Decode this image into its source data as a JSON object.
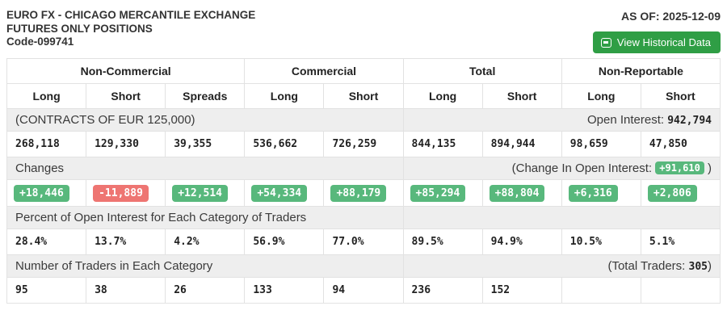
{
  "header": {
    "title_line1": "EURO FX - CHICAGO MERCANTILE EXCHANGE",
    "title_line2": "FUTURES ONLY POSITIONS",
    "code": "Code-099741",
    "as_of": "AS OF: 2025-12-09",
    "historical_button_label": "View Historical Data",
    "historical_button_icon": "chart-window-icon"
  },
  "colors": {
    "button_green": "#2f9e45",
    "badge_green": "#58b87c",
    "badge_red": "#ee7572",
    "band_gray": "#eeeeee"
  },
  "table": {
    "groups": [
      {
        "label": "Non-Commercial"
      },
      {
        "label": "Commercial"
      },
      {
        "label": "Total"
      },
      {
        "label": "Non-Reportable"
      }
    ],
    "subheaders": [
      "Long",
      "Short",
      "Spreads",
      "Long",
      "Short",
      "Long",
      "Short",
      "Long",
      "Short"
    ],
    "contracts_band": {
      "label": "(CONTRACTS OF EUR 125,000)",
      "open_interest_label": "Open Interest: ",
      "open_interest_value": "942,794"
    },
    "positions": [
      "268,118",
      "129,330",
      "39,355",
      "536,662",
      "726,259",
      "844,135",
      "894,944",
      "98,659",
      "47,850"
    ],
    "changes_band": {
      "label": "Changes",
      "change_oi_prefix": "(Change In Open Interest: ",
      "change_oi_value": "+91,610",
      "change_oi_suffix": " )"
    },
    "changes": [
      "+18,446",
      "-11,889",
      "+12,514",
      "+54,334",
      "+88,179",
      "+85,294",
      "+88,804",
      "+6,316",
      "+2,806"
    ],
    "percent_band_label": "Percent of Open Interest for Each Category of Traders",
    "percents": [
      "28.4%",
      "13.7%",
      "4.2%",
      "56.9%",
      "77.0%",
      "89.5%",
      "94.9%",
      "10.5%",
      "5.1%"
    ],
    "traders_band": {
      "label": "Number of Traders in Each Category",
      "total_prefix": "(Total Traders: ",
      "total_value": "305",
      "total_suffix": ")"
    },
    "trader_counts": [
      "95",
      "38",
      "26",
      "133",
      "94",
      "236",
      "152",
      "",
      ""
    ]
  }
}
